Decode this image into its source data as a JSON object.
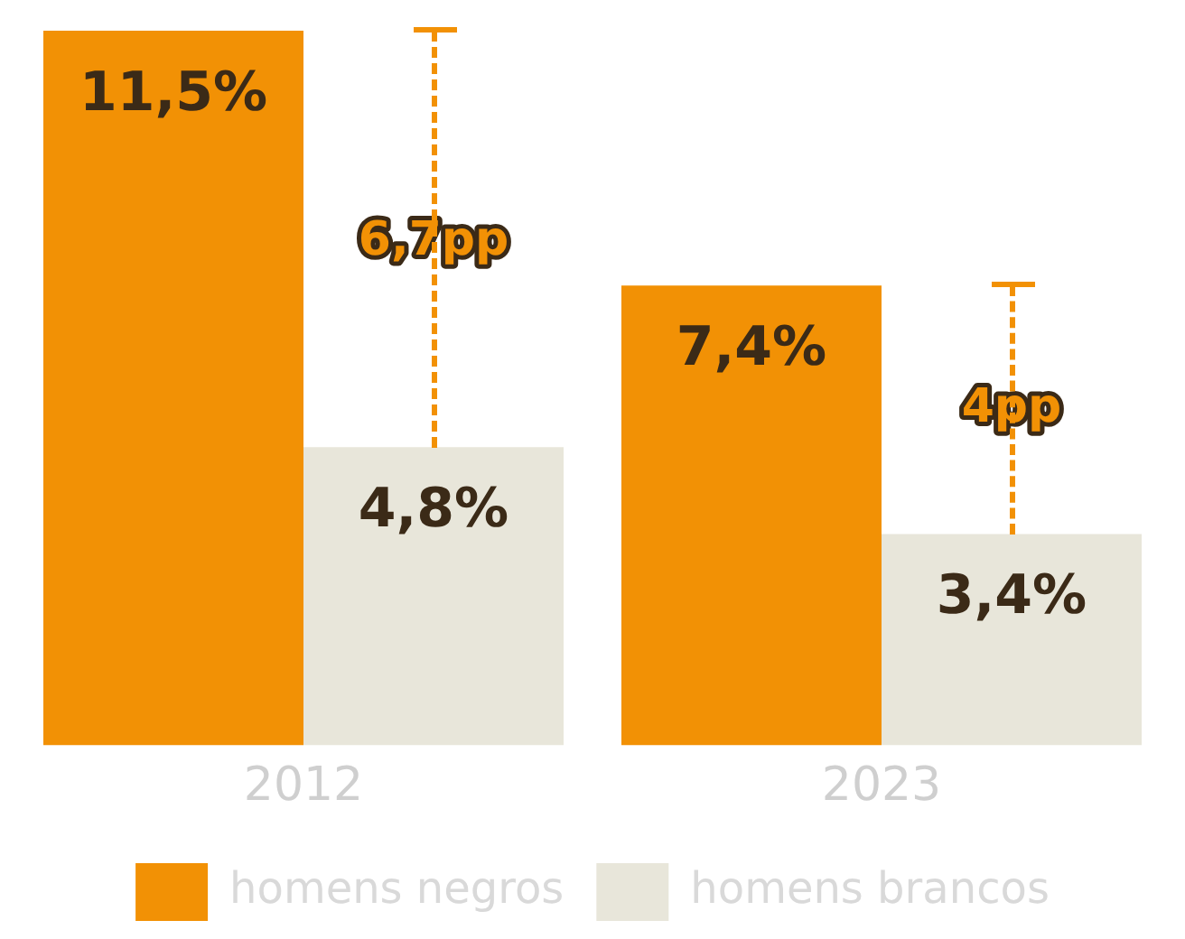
{
  "chart_data": {
    "type": "bar",
    "categories": [
      "2012",
      "2023"
    ],
    "series": [
      {
        "name": "homens negros",
        "color": "#f29105",
        "values": [
          11.5,
          7.4
        ],
        "value_labels": [
          "11,5%",
          "7,4%"
        ]
      },
      {
        "name": "homens brancos",
        "color": "#e8e6da",
        "values": [
          4.8,
          3.4
        ],
        "value_labels": [
          "4,8%",
          "3,4%"
        ]
      }
    ],
    "ylim": [
      0,
      11.5
    ],
    "tick_labels": "x",
    "grid": false,
    "legend": "bottom",
    "annotations": [
      {
        "text": "6,7pp",
        "x": "2012",
        "y": 8.1
      },
      {
        "text": "4pp",
        "x": "2023",
        "y": 5.4
      }
    ]
  }
}
